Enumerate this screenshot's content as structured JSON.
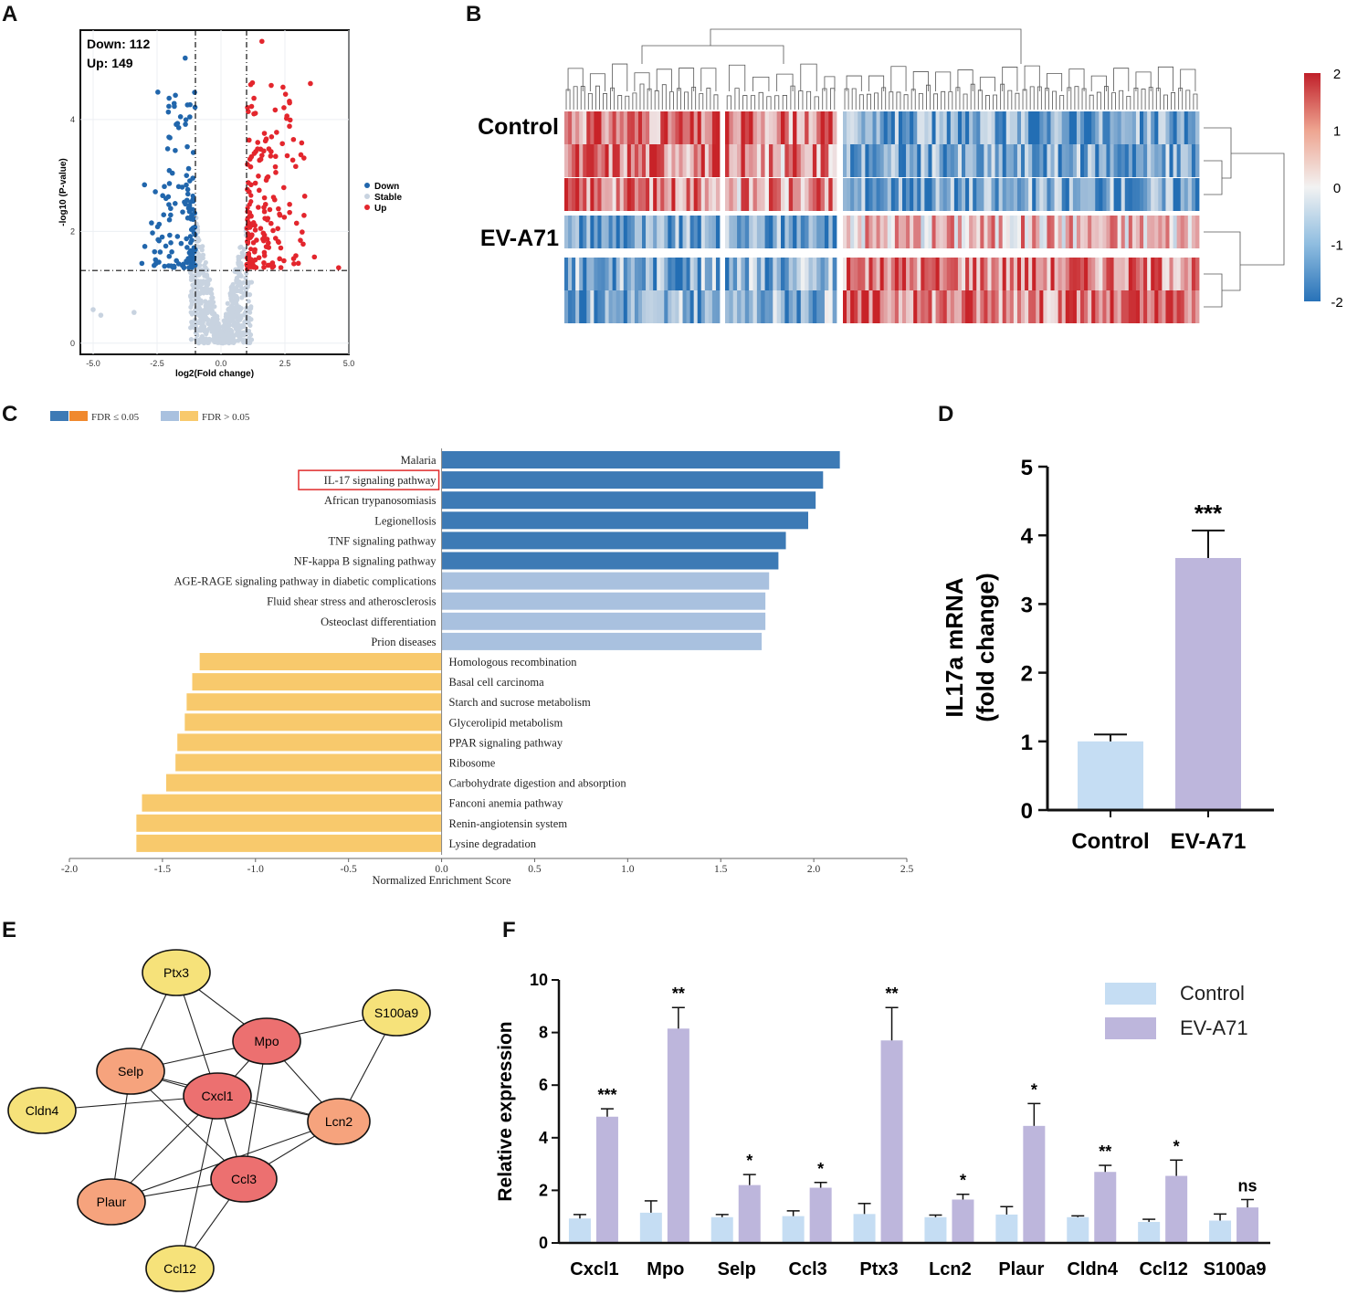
{
  "panels": {
    "A": "A",
    "B": "B",
    "C": "C",
    "D": "D",
    "E": "E",
    "F": "F"
  },
  "colors": {
    "down": "#2166ac",
    "stable": "#c8d3e0",
    "up": "#e3262d",
    "fdr_sig_pos": "#3d7ab5",
    "fdr_sig_neg": "#f0892e",
    "fdr_ns_pos": "#a9c1df",
    "fdr_ns_neg": "#f8c96c",
    "control_bar": "#c5ddf3",
    "eva71_bar": "#bdb6dc",
    "node_high": "#ec7070",
    "node_mid": "#f6a37d",
    "node_low": "#f6e27a"
  },
  "chart_data": [
    {
      "id": "A",
      "type": "scatter",
      "title": "",
      "xlabel": "log2(Fold change)",
      "ylabel": "-log10 (P-value)",
      "xlim": [
        -5.5,
        5.0
      ],
      "ylim": [
        -0.2,
        5.6
      ],
      "xticks": [
        "-5.0",
        "-2.5",
        "0.0",
        "2.5",
        "5.0"
      ],
      "yticks": [
        "0",
        "2",
        "4"
      ],
      "thresholds": {
        "x": [
          -1,
          1
        ],
        "y": 1.3
      },
      "annotation": {
        "down_text": "Down: 112",
        "up_text": "Up: 149"
      },
      "legend": [
        "Down",
        "Stable",
        "Up"
      ],
      "legend_position": "right"
    },
    {
      "id": "B",
      "type": "heatmap",
      "row_labels": [
        "Control",
        "EV-A71"
      ],
      "rows": 6,
      "colorbar_ticks": [
        "2",
        "1",
        "0",
        "-1",
        "-2"
      ],
      "value_range": [
        -2,
        2
      ]
    },
    {
      "id": "C",
      "type": "bar",
      "orientation": "horizontal",
      "legend": [
        "FDR ≤ 0.05",
        "FDR > 0.05"
      ],
      "xlabel": "Normalized Enrichment Score",
      "xlim": [
        -2.0,
        2.5
      ],
      "xticks": [
        "-2.0",
        "-1.5",
        "-1.0",
        "-0.5",
        "0.0",
        "0.5",
        "1.0",
        "1.5",
        "2.0",
        "2.5"
      ],
      "highlighted": "IL-17 signaling pathway",
      "categories": [
        "Malaria",
        "IL-17 signaling pathway",
        "African trypanosomiasis",
        "Legionellosis",
        "TNF signaling pathway",
        "NF-kappa B signaling pathway",
        "AGE-RAGE signaling pathway in diabetic complications",
        "Fluid shear stress and atherosclerosis",
        "Osteoclast differentiation",
        "Prion diseases",
        "Homologous recombination",
        "Basal cell carcinoma",
        "Starch and sucrose metabolism",
        "Glycerolipid metabolism",
        "PPAR signaling pathway",
        "Ribosome",
        "Carbohydrate digestion and absorption",
        "Fanconi anemia pathway",
        "Renin-angiotensin system",
        "Lysine degradation"
      ],
      "values": [
        2.14,
        2.05,
        2.01,
        1.97,
        1.85,
        1.81,
        1.76,
        1.74,
        1.74,
        1.72,
        -1.3,
        -1.34,
        -1.37,
        -1.38,
        -1.42,
        -1.43,
        -1.48,
        -1.61,
        -1.64,
        -1.64
      ],
      "significant": [
        true,
        true,
        true,
        true,
        true,
        true,
        false,
        false,
        false,
        false,
        false,
        false,
        false,
        false,
        false,
        false,
        false,
        false,
        false,
        false
      ]
    },
    {
      "id": "D",
      "type": "bar",
      "ylabel_line1": "IL17a mRNA",
      "ylabel_line2": "(fold change)",
      "ylim": [
        0,
        5
      ],
      "yticks": [
        "0",
        "1",
        "2",
        "3",
        "4",
        "5"
      ],
      "categories": [
        "Control",
        "EV-A71"
      ],
      "values": [
        1.0,
        3.67
      ],
      "errors": [
        0.1,
        0.4
      ],
      "significance": [
        "",
        "***"
      ]
    },
    {
      "id": "E",
      "type": "network",
      "nodes": [
        {
          "id": "Ptx3",
          "level": "low"
        },
        {
          "id": "S100a9",
          "level": "low"
        },
        {
          "id": "Mpo",
          "level": "high"
        },
        {
          "id": "Selp",
          "level": "mid"
        },
        {
          "id": "Cxcl1",
          "level": "high"
        },
        {
          "id": "Cldn4",
          "level": "low"
        },
        {
          "id": "Lcn2",
          "level": "mid"
        },
        {
          "id": "Ccl3",
          "level": "high"
        },
        {
          "id": "Plaur",
          "level": "mid"
        },
        {
          "id": "Ccl12",
          "level": "low"
        }
      ],
      "edges": [
        [
          "Ptx3",
          "Selp"
        ],
        [
          "Ptx3",
          "Mpo"
        ],
        [
          "Ptx3",
          "Cxcl1"
        ],
        [
          "S100a9",
          "Mpo"
        ],
        [
          "S100a9",
          "Lcn2"
        ],
        [
          "Mpo",
          "Selp"
        ],
        [
          "Mpo",
          "Cxcl1"
        ],
        [
          "Mpo",
          "Lcn2"
        ],
        [
          "Mpo",
          "Ccl3"
        ],
        [
          "Selp",
          "Cxcl1"
        ],
        [
          "Selp",
          "Plaur"
        ],
        [
          "Selp",
          "Lcn2"
        ],
        [
          "Selp",
          "Ccl3"
        ],
        [
          "Cxcl1",
          "Cldn4"
        ],
        [
          "Cxcl1",
          "Lcn2"
        ],
        [
          "Cxcl1",
          "Ccl3"
        ],
        [
          "Cxcl1",
          "Plaur"
        ],
        [
          "Cxcl1",
          "Ccl12"
        ],
        [
          "Lcn2",
          "Ccl3"
        ],
        [
          "Ccl3",
          "Plaur"
        ],
        [
          "Ccl3",
          "Ccl12"
        ],
        [
          "Plaur",
          "Lcn2"
        ]
      ]
    },
    {
      "id": "F",
      "type": "bar",
      "ylabel": "Relative expression",
      "ylim": [
        0,
        10
      ],
      "yticks": [
        "0",
        "2",
        "4",
        "6",
        "8",
        "10"
      ],
      "categories": [
        "Cxcl1",
        "Mpo",
        "Selp",
        "Ccl3",
        "Ptx3",
        "Lcn2",
        "Plaur",
        "Cldn4",
        "Ccl12",
        "S100a9"
      ],
      "series": [
        {
          "name": "Control",
          "values": [
            0.93,
            1.15,
            0.98,
            1.02,
            1.1,
            0.98,
            1.08,
            0.98,
            0.8,
            0.85
          ],
          "errors": [
            0.15,
            0.45,
            0.1,
            0.2,
            0.4,
            0.08,
            0.3,
            0.05,
            0.1,
            0.25
          ]
        },
        {
          "name": "EV-A71",
          "values": [
            4.8,
            8.15,
            2.2,
            2.1,
            7.7,
            1.65,
            4.45,
            2.7,
            2.55,
            1.35
          ],
          "errors": [
            0.3,
            0.8,
            0.4,
            0.2,
            1.25,
            0.2,
            0.85,
            0.25,
            0.6,
            0.3
          ]
        }
      ],
      "significance": [
        "***",
        "**",
        "*",
        "*",
        "**",
        "*",
        "*",
        "**",
        "*",
        "ns"
      ],
      "legend_position": "top-right"
    }
  ]
}
